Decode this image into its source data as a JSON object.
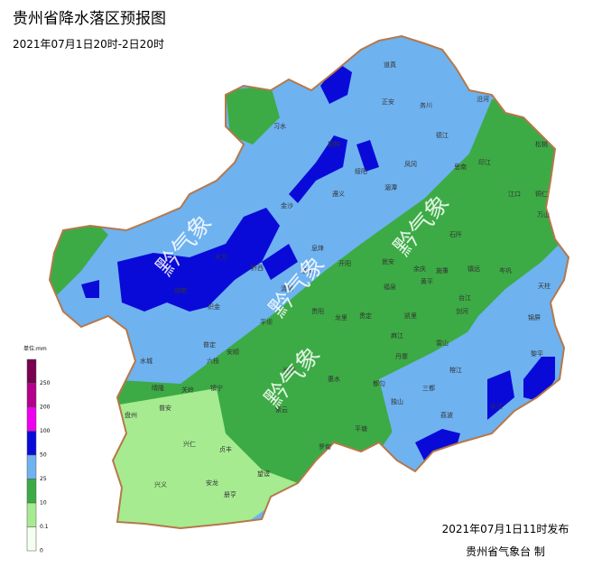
{
  "header": {
    "title": "贵州省降水落区预报图",
    "subtitle": "2021年07月1日20时-2日20时"
  },
  "legend": {
    "unit": "单位:mm",
    "ticks": [
      "250",
      "200",
      "100",
      "50",
      "25",
      "10",
      "0.1",
      "0"
    ]
  },
  "watermarks": [
    "黔气象",
    "黔气象",
    "黔气象",
    "黔气象"
  ],
  "places": [
    "道真",
    "正安",
    "务川",
    "沿河",
    "习水",
    "桐梓",
    "凤冈",
    "湄潭",
    "德江",
    "思南",
    "印江",
    "松桃",
    "江口",
    "铜仁",
    "万山",
    "遵义",
    "绥阳",
    "金沙",
    "黔西",
    "大方",
    "织金",
    "纳雍",
    "开阳",
    "息烽",
    "修文",
    "清镇",
    "贵阳",
    "龙里",
    "贵定",
    "福泉",
    "瓮安",
    "余庆",
    "石阡",
    "施秉",
    "镇远",
    "岑巩",
    "天柱",
    "锦屏",
    "黎平",
    "剑河",
    "台江",
    "凯里",
    "黄平",
    "麻江",
    "雷山",
    "丹寨",
    "榕江",
    "从江",
    "三都",
    "都匀",
    "独山",
    "荔波",
    "平塘",
    "罗甸",
    "惠水",
    "长顺",
    "平坝",
    "安顺",
    "普定",
    "六枝",
    "镇宁",
    "关岭",
    "紫云",
    "望谟",
    "册亨",
    "贞丰",
    "安龙",
    "兴仁",
    "兴义",
    "普安",
    "晴隆",
    "盘州",
    "水城"
  ],
  "footer": {
    "issued": "2021年07月1日11时发布",
    "agency": "贵州省气象台 制"
  }
}
